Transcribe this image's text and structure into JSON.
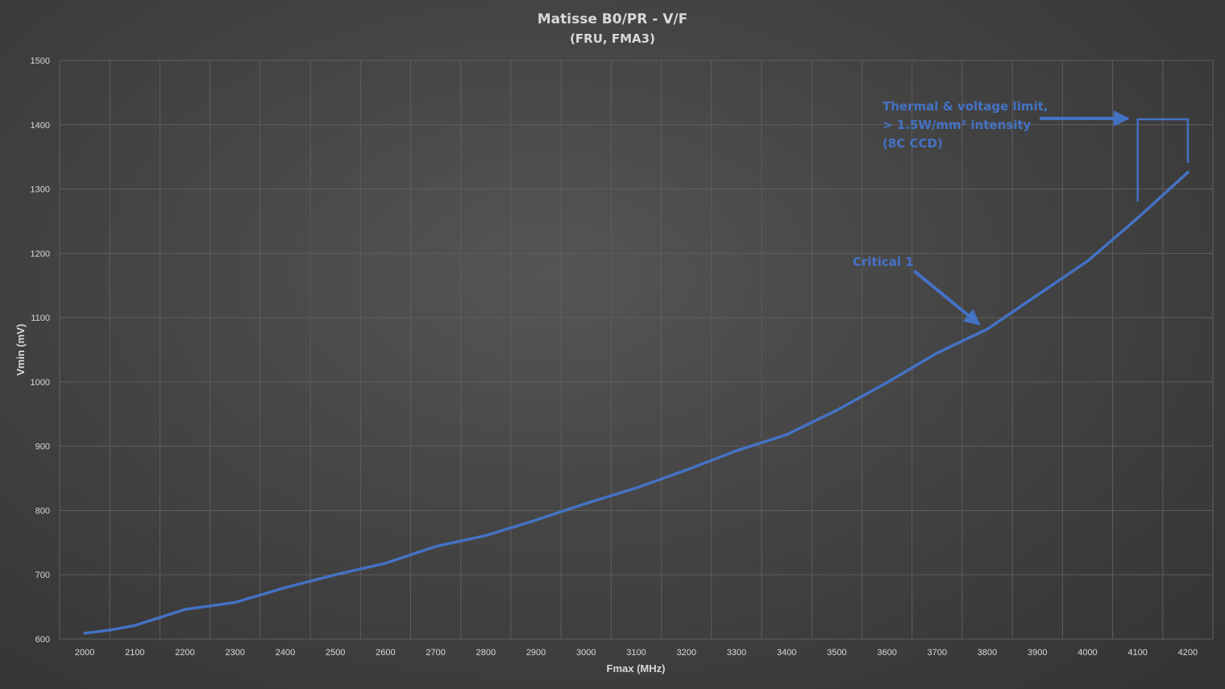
{
  "chart_data": {
    "type": "line",
    "title": "Matisse  B0/PR - V/F",
    "subtitle": "(FRU, FMA3)",
    "xlabel": "Fmax (MHz)",
    "ylabel": "Vmin (mV)",
    "xlim": [
      2000,
      4200
    ],
    "ylim": [
      600,
      1500
    ],
    "x_ticks": [
      "2000",
      "2100",
      "2200",
      "2300",
      "2400",
      "2500",
      "2600",
      "2700",
      "2800",
      "2900",
      "3000",
      "3100",
      "3200",
      "3300",
      "3400",
      "3500",
      "3600",
      "3700",
      "3800",
      "3900",
      "4000",
      "4100",
      "4200"
    ],
    "y_ticks": [
      "600",
      "700",
      "800",
      "900",
      "1000",
      "1100",
      "1200",
      "1300",
      "1400",
      "1500"
    ],
    "grid": true,
    "series": [
      {
        "color": "#4472c4",
        "x": [
          2000,
          2050,
          2100,
          2200,
          2300,
          2400,
          2500,
          2600,
          2700,
          2800,
          2900,
          3000,
          3100,
          3200,
          3300,
          3400,
          3500,
          3600,
          3700,
          3800,
          3900,
          4000,
          4100,
          4200
        ],
        "values": [
          609,
          614,
          621,
          646,
          657,
          680,
          700,
          718,
          744,
          761,
          785,
          811,
          835,
          863,
          893,
          918,
          956,
          999,
          1045,
          1082,
          1135,
          1188,
          1255,
          1326
        ]
      }
    ],
    "annotations": [
      {
        "id": "critical",
        "text_lines": [
          "Critical 1"
        ],
        "color": "#4472c4",
        "arrow_target": [
          3800,
          1082
        ]
      },
      {
        "id": "thermal",
        "text_lines": [
          "Thermal & voltage limit,",
          "> 1.5W/mm² intensity",
          "(8C CCD)"
        ],
        "color": "#4472c4",
        "bracket_x": [
          4100,
          4200
        ]
      }
    ]
  }
}
